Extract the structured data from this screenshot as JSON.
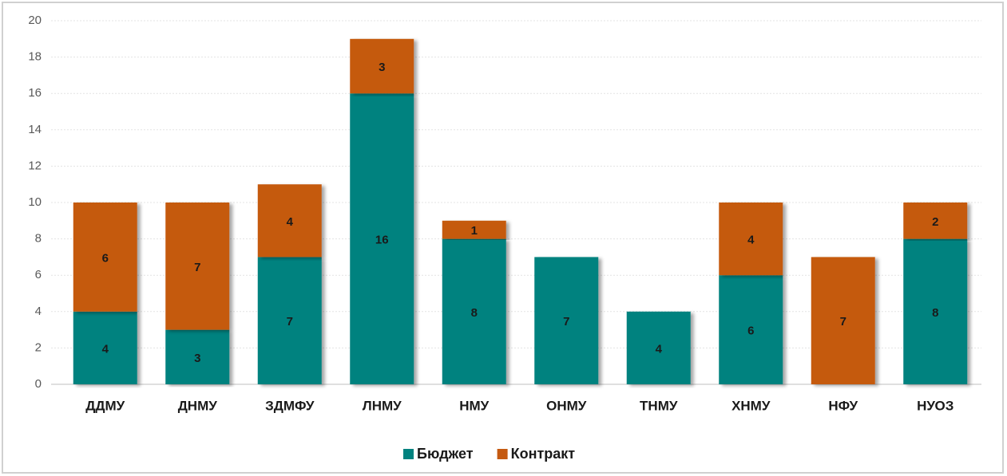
{
  "chart_data": {
    "type": "stacked_bar",
    "categories": [
      "ДДМУ",
      "ДНМУ",
      "ЗДМФУ",
      "ЛНМУ",
      "НМУ",
      "ОНМУ",
      "ТНМУ",
      "ХНМУ",
      "НФУ",
      "НУОЗ"
    ],
    "series": [
      {
        "name": "Бюджет",
        "color": "#00827f",
        "values": [
          4,
          3,
          7,
          16,
          8,
          7,
          4,
          6,
          null,
          8
        ]
      },
      {
        "name": "Контракт",
        "color": "#c55a11",
        "values": [
          6,
          7,
          4,
          3,
          1,
          null,
          null,
          4,
          7,
          2
        ]
      }
    ],
    "ylim": [
      0,
      20
    ],
    "yticks": [
      0,
      2,
      4,
      6,
      8,
      10,
      12,
      14,
      16,
      18,
      20
    ],
    "grid": true,
    "legend": "bottom"
  }
}
